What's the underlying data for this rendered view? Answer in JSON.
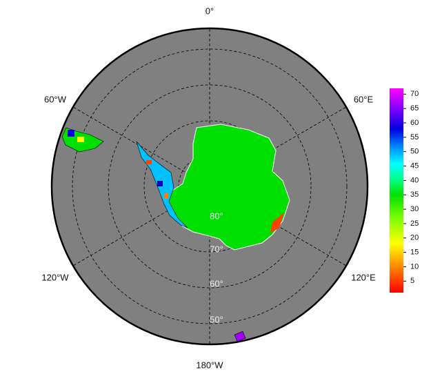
{
  "map": {
    "longitude_labels": [
      "0°",
      "60°E",
      "120°E",
      "180°W",
      "120°W",
      "60°W"
    ],
    "latitude_labels": [
      "80°",
      "70°",
      "60°",
      "50°"
    ]
  },
  "colorbar": {
    "lim": [
      1,
      72
    ],
    "ticks": [
      5,
      10,
      15,
      20,
      25,
      30,
      35,
      40,
      45,
      50,
      55,
      60,
      65,
      70
    ]
  }
}
